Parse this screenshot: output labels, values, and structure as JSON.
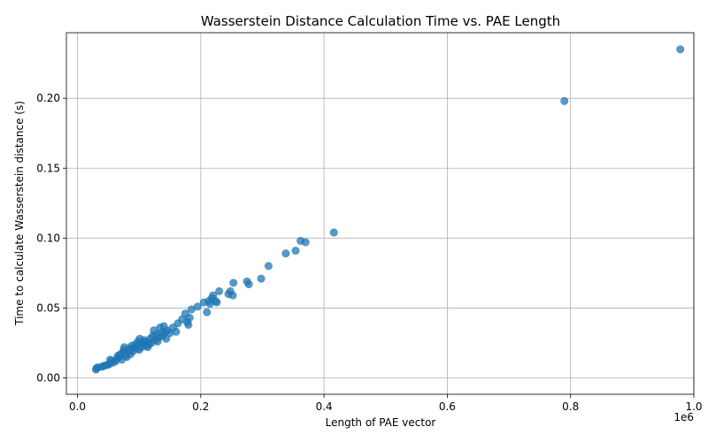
{
  "chart_data": {
    "type": "scatter",
    "title": "Wasserstein Distance Calculation Time vs. PAE Length",
    "xlabel": "Length of PAE vector",
    "ylabel": "Time to calculate Wasserstein distance (s)",
    "x_offset_label": "1e6",
    "xlim": [
      -0.018,
      1.0
    ],
    "ylim": [
      -0.0117,
      0.2469
    ],
    "x_ticks": [
      0.0,
      0.2,
      0.4,
      0.6,
      0.8,
      1.0
    ],
    "x_tick_labels": [
      "0.0",
      "0.2",
      "0.4",
      "0.6",
      "0.8",
      "1.0"
    ],
    "y_ticks": [
      0.0,
      0.05,
      0.1,
      0.15,
      0.2
    ],
    "y_tick_labels": [
      "0.00",
      "0.05",
      "0.10",
      "0.15",
      "0.20"
    ],
    "grid": true,
    "marker_color": "#1f77b4",
    "marker_alpha": 0.75,
    "points": [
      [
        0.03,
        0.006
      ],
      [
        0.031,
        0.007
      ],
      [
        0.033,
        0.0075
      ],
      [
        0.04,
        0.008
      ],
      [
        0.042,
        0.0085
      ],
      [
        0.046,
        0.009
      ],
      [
        0.05,
        0.0095
      ],
      [
        0.052,
        0.01
      ],
      [
        0.053,
        0.013
      ],
      [
        0.055,
        0.012
      ],
      [
        0.058,
        0.011
      ],
      [
        0.062,
        0.012
      ],
      [
        0.064,
        0.014
      ],
      [
        0.066,
        0.016
      ],
      [
        0.068,
        0.015
      ],
      [
        0.07,
        0.017
      ],
      [
        0.072,
        0.013
      ],
      [
        0.074,
        0.018
      ],
      [
        0.075,
        0.02
      ],
      [
        0.076,
        0.022
      ],
      [
        0.078,
        0.016
      ],
      [
        0.08,
        0.015
      ],
      [
        0.082,
        0.019
      ],
      [
        0.084,
        0.021
      ],
      [
        0.086,
        0.017
      ],
      [
        0.088,
        0.023
      ],
      [
        0.09,
        0.019
      ],
      [
        0.092,
        0.022
      ],
      [
        0.094,
        0.024
      ],
      [
        0.096,
        0.021
      ],
      [
        0.098,
        0.026
      ],
      [
        0.1,
        0.02
      ],
      [
        0.101,
        0.028
      ],
      [
        0.102,
        0.024
      ],
      [
        0.104,
        0.022
      ],
      [
        0.106,
        0.025
      ],
      [
        0.108,
        0.027
      ],
      [
        0.11,
        0.023
      ],
      [
        0.112,
        0.026
      ],
      [
        0.114,
        0.022
      ],
      [
        0.116,
        0.024
      ],
      [
        0.118,
        0.028
      ],
      [
        0.12,
        0.025
      ],
      [
        0.122,
        0.03
      ],
      [
        0.124,
        0.034
      ],
      [
        0.126,
        0.027
      ],
      [
        0.128,
        0.031
      ],
      [
        0.13,
        0.026
      ],
      [
        0.132,
        0.029
      ],
      [
        0.134,
        0.036
      ],
      [
        0.136,
        0.032
      ],
      [
        0.138,
        0.03
      ],
      [
        0.14,
        0.037
      ],
      [
        0.142,
        0.033
      ],
      [
        0.144,
        0.028
      ],
      [
        0.146,
        0.034
      ],
      [
        0.15,
        0.032
      ],
      [
        0.155,
        0.036
      ],
      [
        0.16,
        0.033
      ],
      [
        0.163,
        0.039
      ],
      [
        0.17,
        0.042
      ],
      [
        0.175,
        0.046
      ],
      [
        0.178,
        0.04
      ],
      [
        0.18,
        0.038
      ],
      [
        0.182,
        0.043
      ],
      [
        0.185,
        0.049
      ],
      [
        0.195,
        0.051
      ],
      [
        0.205,
        0.054
      ],
      [
        0.21,
        0.047
      ],
      [
        0.213,
        0.055
      ],
      [
        0.215,
        0.053
      ],
      [
        0.218,
        0.057
      ],
      [
        0.22,
        0.059
      ],
      [
        0.224,
        0.055
      ],
      [
        0.226,
        0.054
      ],
      [
        0.23,
        0.062
      ],
      [
        0.245,
        0.06
      ],
      [
        0.248,
        0.062
      ],
      [
        0.252,
        0.059
      ],
      [
        0.253,
        0.068
      ],
      [
        0.275,
        0.069
      ],
      [
        0.278,
        0.067
      ],
      [
        0.298,
        0.071
      ],
      [
        0.31,
        0.08
      ],
      [
        0.338,
        0.089
      ],
      [
        0.354,
        0.091
      ],
      [
        0.362,
        0.098
      ],
      [
        0.37,
        0.097
      ],
      [
        0.416,
        0.104
      ],
      [
        0.79,
        0.198
      ],
      [
        0.978,
        0.235
      ]
    ]
  }
}
